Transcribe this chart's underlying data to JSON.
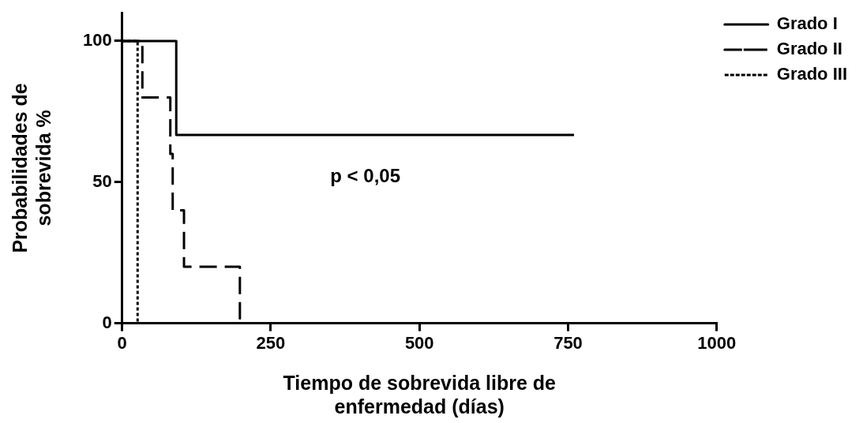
{
  "chart_data": {
    "type": "step",
    "xlabel": "Tiempo de sobrevida libre de enfermedad (días)",
    "ylabel": "Probabilidades de sobrevida %",
    "xlim": [
      0,
      1000
    ],
    "xticks": [
      0,
      250,
      500,
      750,
      1000
    ],
    "ylim": [
      0,
      110
    ],
    "yticks": [
      0,
      50,
      100
    ],
    "grid": false,
    "legend": "top right",
    "marker": "none",
    "annotations": [
      "p < 0,05"
    ],
    "series": [
      {
        "name": "Grado I",
        "color": "#000000",
        "line_style": "solid",
        "x": [
          0,
          91,
          760
        ],
        "values": [
          100,
          66.7,
          66.7
        ]
      },
      {
        "name": "Grado II",
        "color": "#000000",
        "line_style": "dashed",
        "x": [
          0,
          34,
          81,
          85,
          104,
          198
        ],
        "values": [
          100,
          80,
          60,
          40,
          20,
          0
        ]
      },
      {
        "name": "Grado III",
        "color": "#000000",
        "line_style": "dotted",
        "x": [
          0,
          26
        ],
        "values": [
          100,
          0
        ]
      }
    ]
  }
}
